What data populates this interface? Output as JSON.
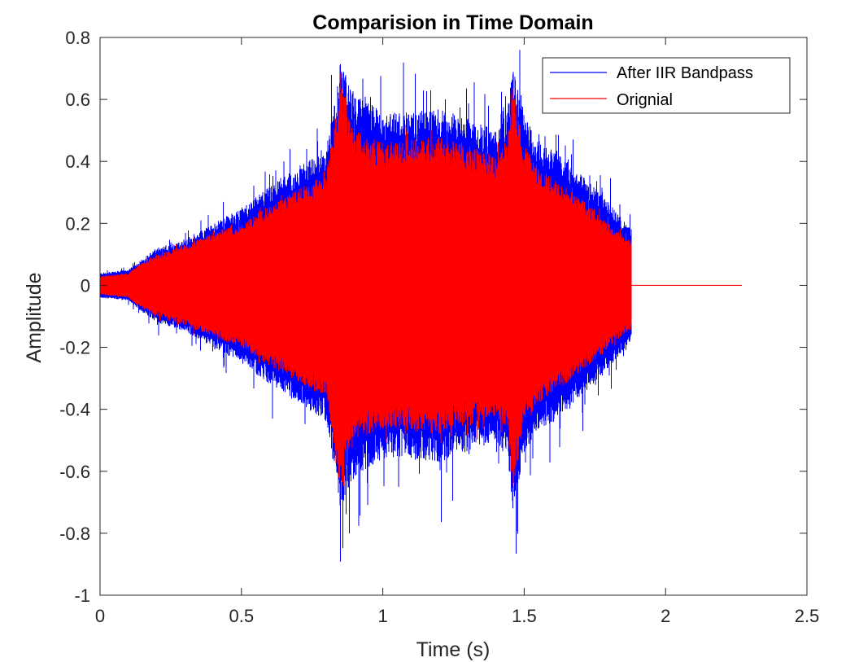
{
  "chart_data": {
    "type": "line",
    "title": "Comparision in Time Domain",
    "xlabel": "Time (s)",
    "ylabel": "Amplitude",
    "xlim": [
      0,
      2.5
    ],
    "ylim": [
      -1,
      0.8
    ],
    "xticks": [
      0,
      0.5,
      1,
      1.5,
      2,
      2.5
    ],
    "xtick_labels": [
      "0",
      "0.5",
      "1",
      "1.5",
      "2",
      "2.5"
    ],
    "yticks": [
      -1,
      -0.8,
      -0.6,
      -0.4,
      -0.2,
      0,
      0.2,
      0.4,
      0.6,
      0.8
    ],
    "ytick_labels": [
      "-1",
      "-0.8",
      "-0.6",
      "-0.4",
      "-0.2",
      "0",
      "0.2",
      "0.4",
      "0.6",
      "0.8"
    ],
    "grid": false,
    "legend_position": "top-right",
    "series": [
      {
        "name": "After IIR Bandpass",
        "color": "#0000ff",
        "kind": "oscillating signal (upper / lower envelope)",
        "envelope": {
          "t": [
            0,
            0.1,
            0.14,
            0.2,
            0.3,
            0.4,
            0.5,
            0.6,
            0.7,
            0.8,
            0.82,
            0.85,
            0.9,
            1.0,
            1.1,
            1.2,
            1.3,
            1.4,
            1.44,
            1.46,
            1.5,
            1.55,
            1.6,
            1.7,
            1.8,
            1.85,
            1.88
          ],
          "upper": [
            0.04,
            0.05,
            0.08,
            0.12,
            0.15,
            0.2,
            0.25,
            0.32,
            0.38,
            0.44,
            0.55,
            0.72,
            0.62,
            0.56,
            0.56,
            0.57,
            0.54,
            0.5,
            0.56,
            0.72,
            0.55,
            0.47,
            0.44,
            0.36,
            0.27,
            0.21,
            0.18
          ],
          "lower": [
            -0.04,
            -0.05,
            -0.08,
            -0.12,
            -0.15,
            -0.2,
            -0.25,
            -0.32,
            -0.38,
            -0.44,
            -0.55,
            -0.72,
            -0.62,
            -0.56,
            -0.56,
            -0.57,
            -0.54,
            -0.5,
            -0.56,
            -0.72,
            -0.55,
            -0.47,
            -0.44,
            -0.36,
            -0.27,
            -0.21,
            -0.18
          ]
        },
        "t_end": 1.88
      },
      {
        "name": "Orignial",
        "color": "#ff0000",
        "kind": "oscillating signal (upper / lower envelope)",
        "envelope": {
          "t": [
            0,
            0.1,
            0.14,
            0.2,
            0.3,
            0.4,
            0.5,
            0.6,
            0.7,
            0.8,
            0.82,
            0.85,
            0.9,
            1.0,
            1.1,
            1.2,
            1.3,
            1.4,
            1.44,
            1.46,
            1.5,
            1.55,
            1.6,
            1.7,
            1.8,
            1.85,
            1.88
          ],
          "upper": [
            0.03,
            0.04,
            0.07,
            0.1,
            0.13,
            0.17,
            0.2,
            0.26,
            0.31,
            0.36,
            0.47,
            0.66,
            0.5,
            0.46,
            0.47,
            0.48,
            0.45,
            0.42,
            0.47,
            0.66,
            0.45,
            0.38,
            0.35,
            0.28,
            0.2,
            0.16,
            0.14
          ],
          "lower": [
            -0.03,
            -0.04,
            -0.07,
            -0.1,
            -0.13,
            -0.17,
            -0.2,
            -0.26,
            -0.31,
            -0.36,
            -0.47,
            -0.66,
            -0.5,
            -0.46,
            -0.47,
            -0.48,
            -0.45,
            -0.42,
            -0.47,
            -0.66,
            -0.45,
            -0.38,
            -0.35,
            -0.28,
            -0.2,
            -0.16,
            -0.14
          ]
        },
        "t_end": 2.27
      }
    ]
  }
}
